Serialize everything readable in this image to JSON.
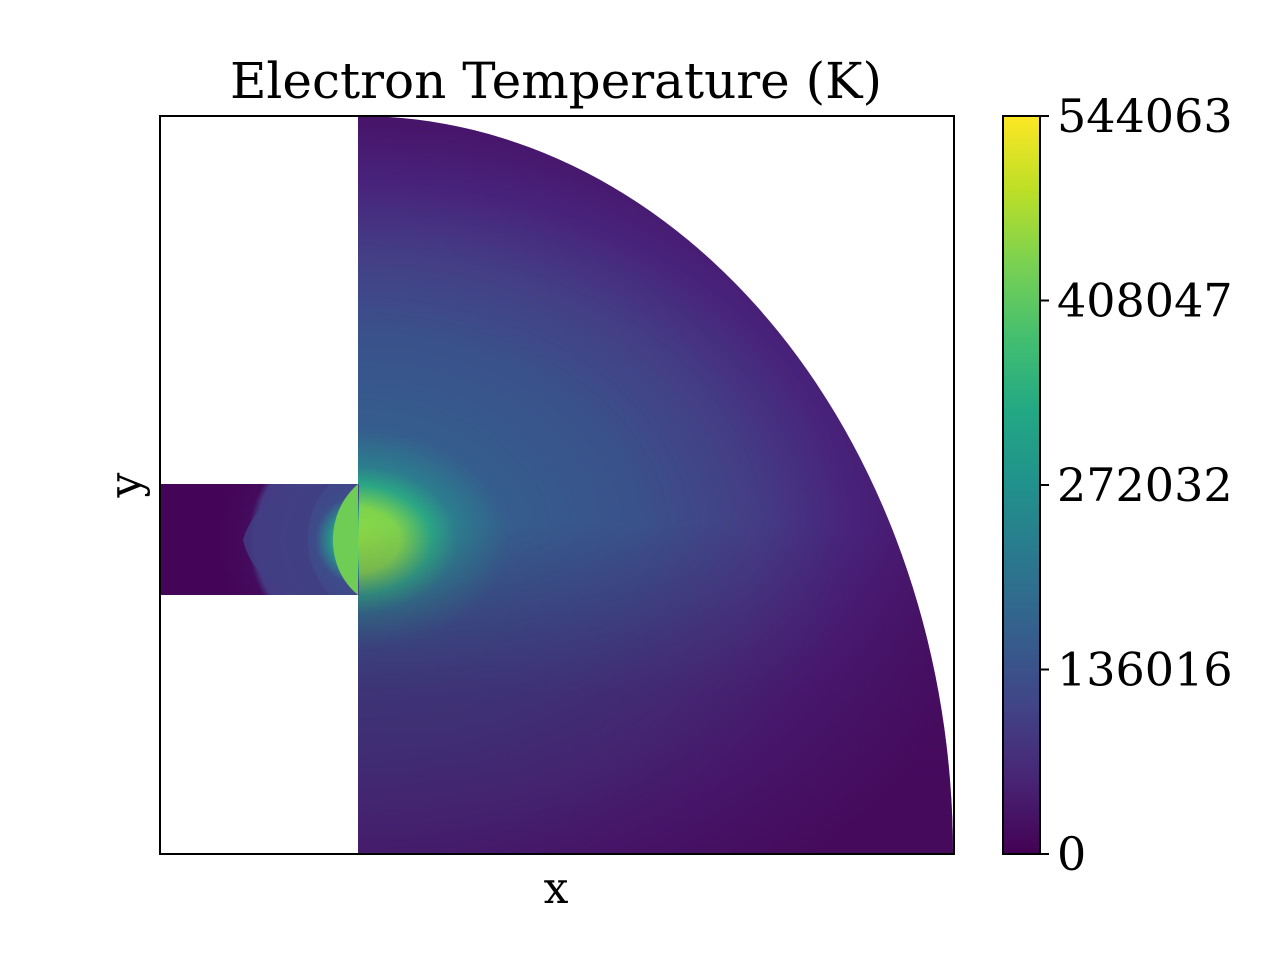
{
  "chart_data": {
    "type": "heatmap",
    "title": "Electron Temperature (K)",
    "xlabel": "x",
    "ylabel": "y",
    "colormap": "viridis",
    "colorbar": {
      "min": 0,
      "max": 544063,
      "ticks": [
        0,
        136016,
        272032,
        408047,
        544063
      ],
      "tick_labels": [
        "0",
        "136016",
        "272032",
        "408047",
        "544063"
      ]
    },
    "x_ticks_shown": false,
    "y_ticks_shown": false,
    "field_description_values": {
      "peak_region_value": 430000,
      "outer_region_value": 20000,
      "channel_inner_value": 15000
    }
  }
}
